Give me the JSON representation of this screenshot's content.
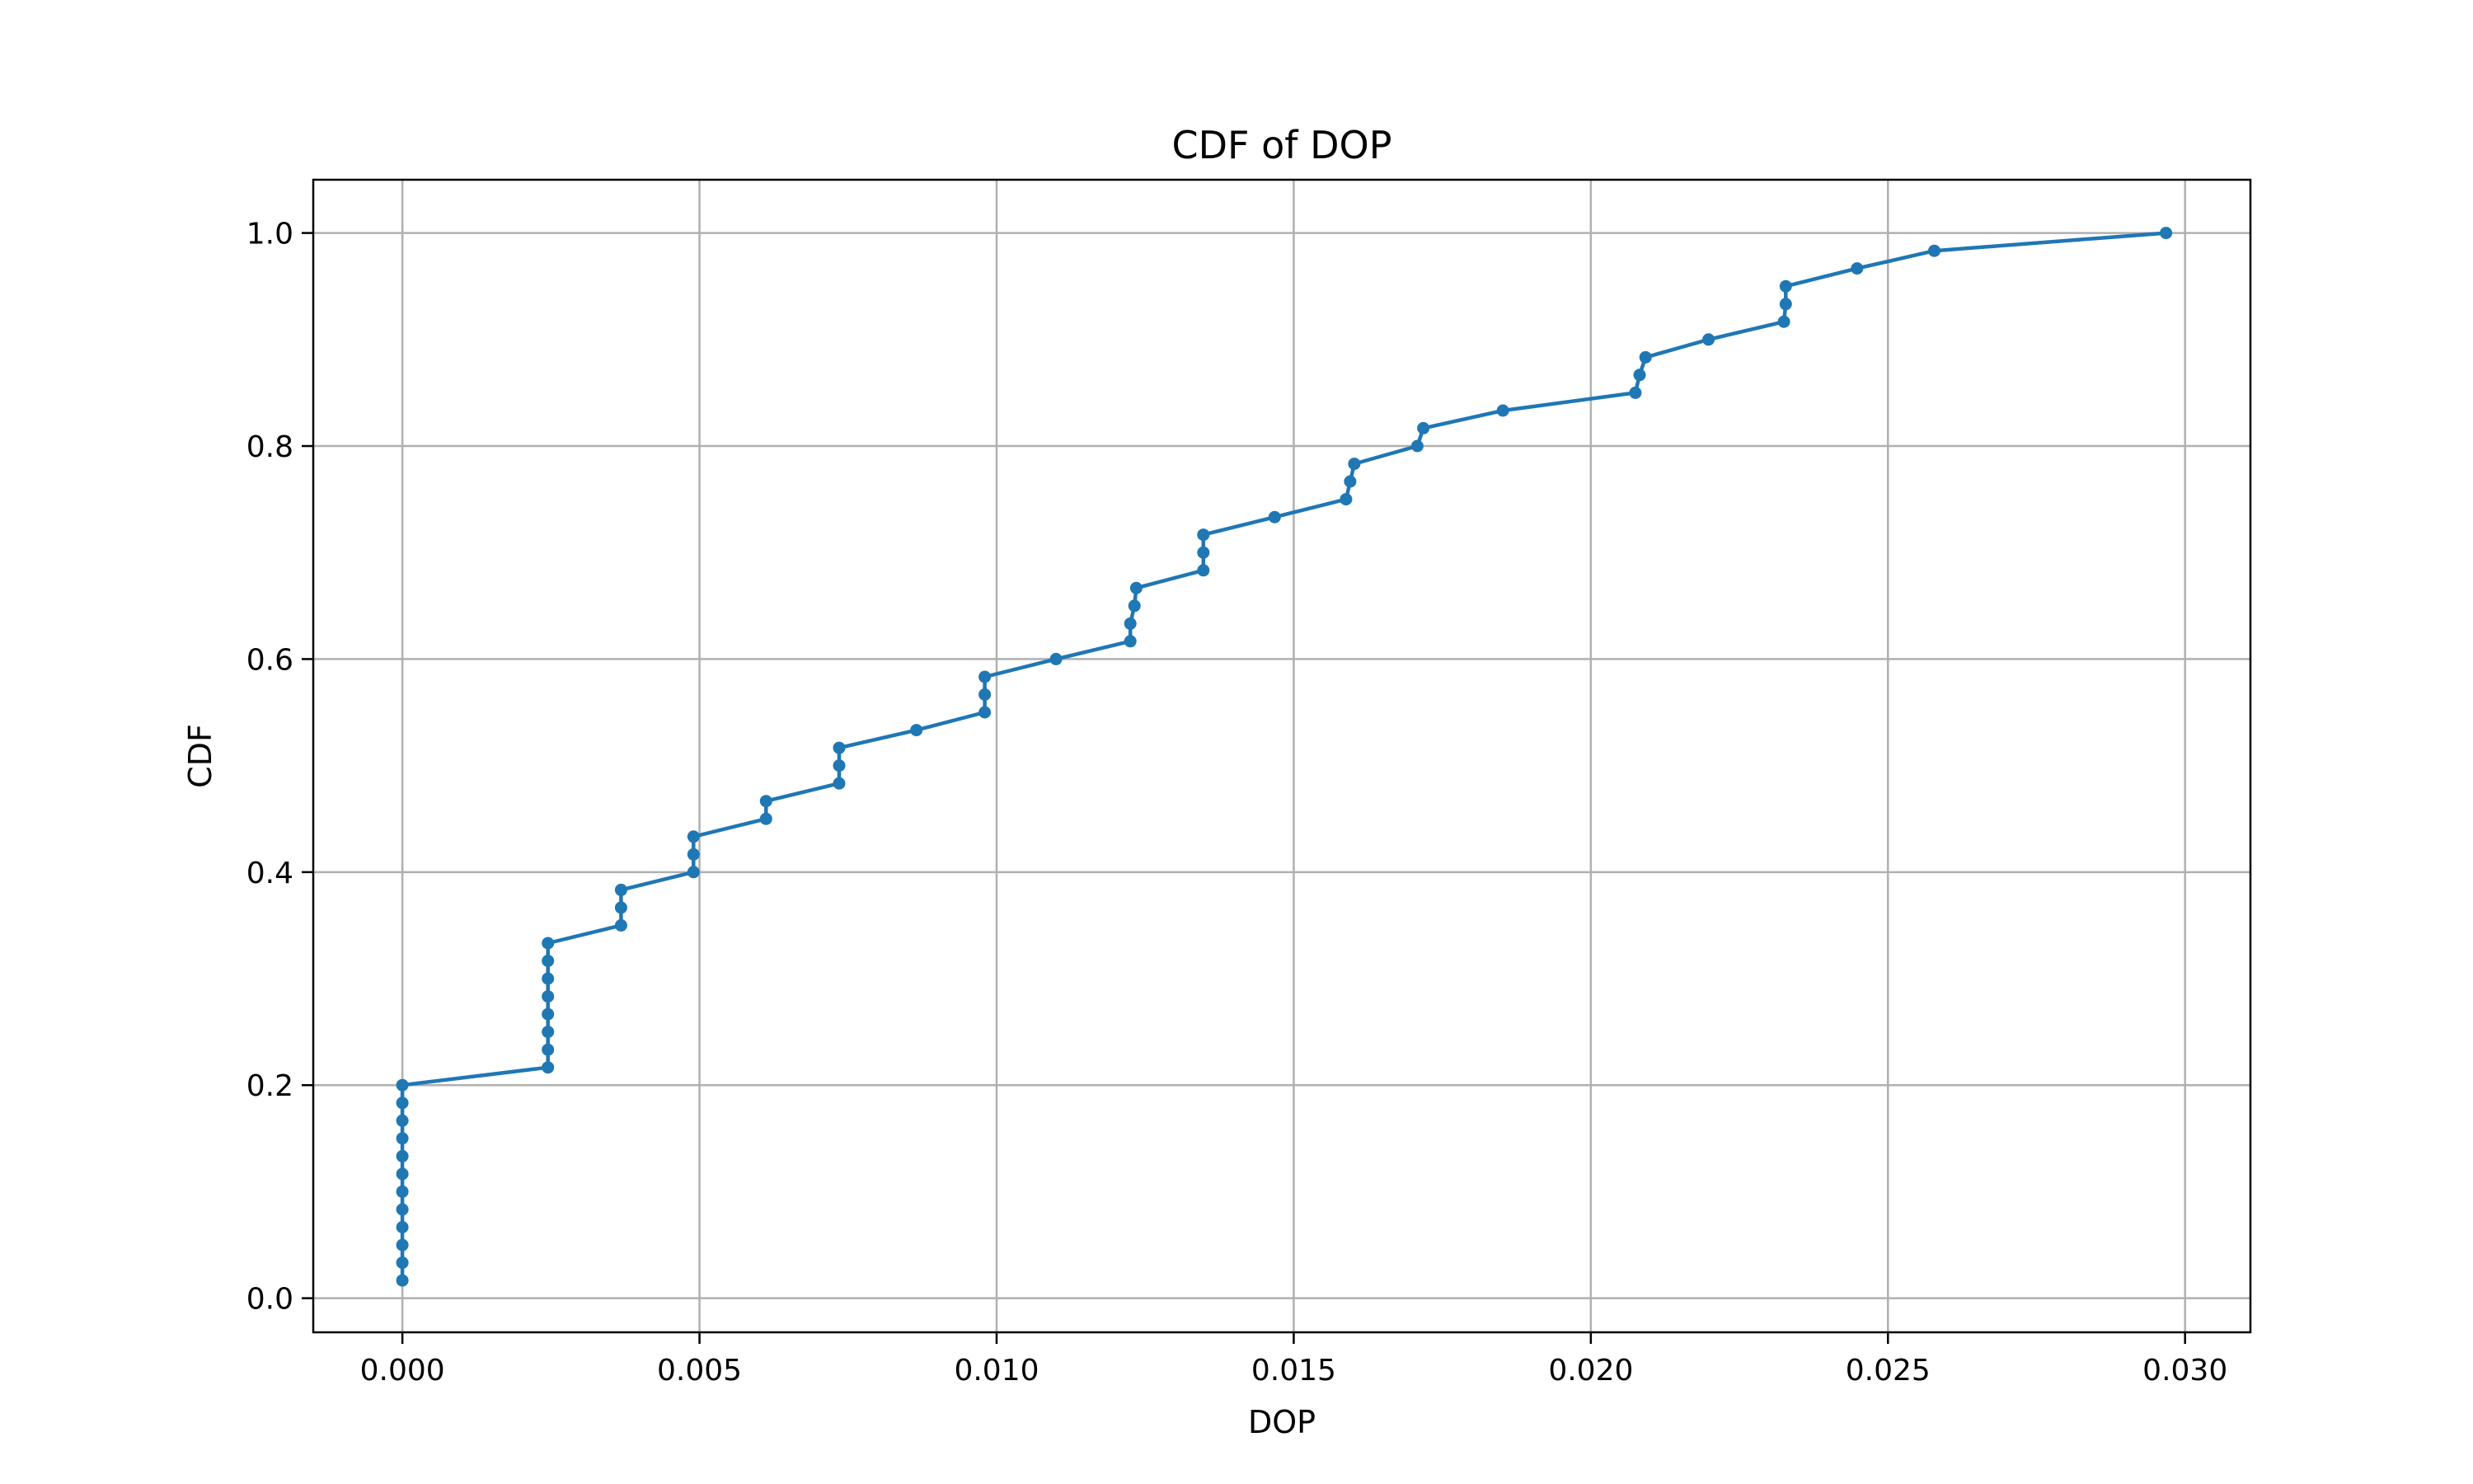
{
  "chart_data": {
    "type": "line",
    "title": "CDF of DOP",
    "xlabel": "DOP",
    "ylabel": "CDF",
    "xlim": [
      -0.0015,
      0.0311
    ],
    "ylim": [
      -0.032,
      1.05
    ],
    "xticks": [
      0.0,
      0.005,
      0.01,
      0.015,
      0.02,
      0.025,
      0.03
    ],
    "xtick_labels": [
      "0.000",
      "0.005",
      "0.010",
      "0.015",
      "0.020",
      "0.025",
      "0.030"
    ],
    "yticks": [
      0.0,
      0.2,
      0.4,
      0.6,
      0.8,
      1.0
    ],
    "ytick_labels": [
      "0.0",
      "0.2",
      "0.4",
      "0.6",
      "0.8",
      "1.0"
    ],
    "grid": true,
    "color": "#1f77b4",
    "series": [
      {
        "x": [
          0.0,
          0.0,
          0.0,
          0.0,
          0.0,
          0.0,
          0.0,
          0.0,
          0.0,
          0.0,
          0.0,
          0.0,
          0.00245,
          0.00245,
          0.00245,
          0.00245,
          0.00245,
          0.00245,
          0.00245,
          0.00245,
          0.00368,
          0.00368,
          0.00368,
          0.0049,
          0.0049,
          0.0049,
          0.00612,
          0.00612,
          0.00735,
          0.00735,
          0.00735,
          0.00865,
          0.0098,
          0.0098,
          0.0098,
          0.011,
          0.01225,
          0.01225,
          0.01232,
          0.01235,
          0.01348,
          0.01348,
          0.01348,
          0.01468,
          0.01588,
          0.01595,
          0.01602,
          0.01708,
          0.01718,
          0.01852,
          0.02075,
          0.02082,
          0.02092,
          0.02198,
          0.02325,
          0.02328,
          0.02328,
          0.02448,
          0.02578,
          0.02968
        ],
        "y": [
          0.0167,
          0.0333,
          0.05,
          0.0667,
          0.0833,
          0.1,
          0.1167,
          0.1333,
          0.15,
          0.1667,
          0.1833,
          0.2,
          0.2167,
          0.2333,
          0.25,
          0.2667,
          0.2833,
          0.3,
          0.3167,
          0.3333,
          0.35,
          0.3667,
          0.3833,
          0.4,
          0.4167,
          0.4333,
          0.45,
          0.4667,
          0.4833,
          0.5,
          0.5167,
          0.5333,
          0.55,
          0.5667,
          0.5833,
          0.6,
          0.6167,
          0.6333,
          0.65,
          0.6667,
          0.6833,
          0.7,
          0.7167,
          0.7333,
          0.75,
          0.7667,
          0.7833,
          0.8,
          0.8167,
          0.8333,
          0.85,
          0.8667,
          0.8833,
          0.9,
          0.9167,
          0.9333,
          0.95,
          0.9667,
          0.9833,
          1.0
        ]
      }
    ]
  }
}
